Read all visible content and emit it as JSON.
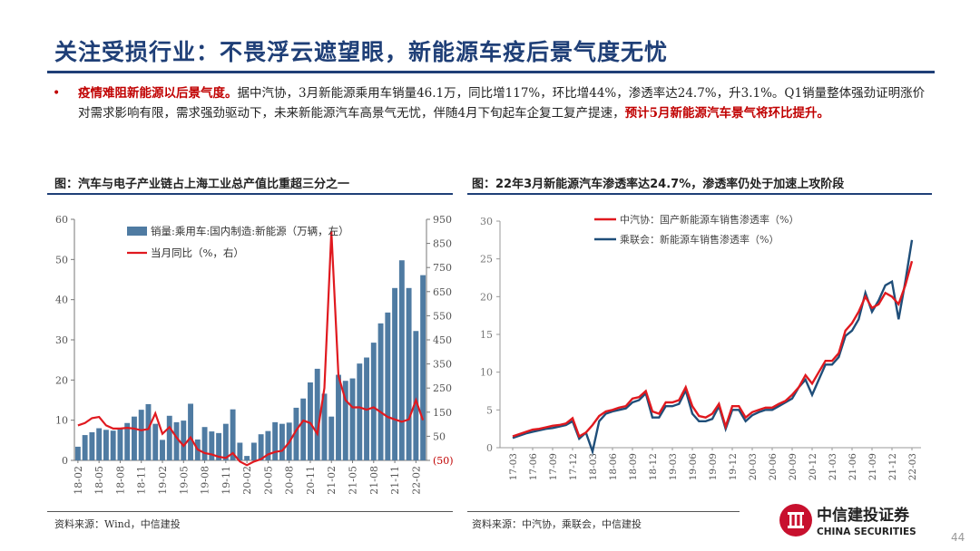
{
  "header": {
    "title": "关注受损行业：不畏浮云遮望眼，新能源车疫后景气度无忧"
  },
  "bullet": {
    "bold1": "疫情难阻新能源以后景气度。",
    "text1": "据中汽协，3月新能源乘用车销量46.1万，同比增117%，环比增44%，渗透率达24.7%，升3.1%。Q1销量整体强劲证明涨价对需求影响有限，需求强劲驱动下，未来新能源汽车高景气无忧，伴随4月下旬起车企复工复产提速，",
    "bold2": "预计5月新能源汽车景气将环比提升。"
  },
  "colors": {
    "accent": "#1f3f77",
    "bar": "#4f7ba2",
    "red_line": "#e0191f",
    "blue_line": "#1f4e79"
  },
  "chart_left": {
    "title": "图：汽车与电子产业链占上海工业总产值比重超三分之一",
    "source": "资料来源：Wind，中信建投"
  },
  "chart_right": {
    "title": "图：22年3月新能源汽车渗透率达24.7%，渗透率仍处于加速上攻阶段",
    "source": "资料来源：中汽协，乘联会，中信建投"
  },
  "logo": {
    "cn": "中信建投证券",
    "en": "CHINA SECURITIES"
  },
  "page_number": "44",
  "chart_data": [
    {
      "type": "bar+line",
      "categories": [
        "18-02",
        "18-03",
        "18-04",
        "18-05",
        "18-06",
        "18-07",
        "18-08",
        "18-09",
        "18-10",
        "18-11",
        "18-12",
        "19-01",
        "19-02",
        "19-03",
        "19-04",
        "19-05",
        "19-06",
        "19-07",
        "19-08",
        "19-09",
        "19-10",
        "19-11",
        "19-12",
        "20-01",
        "20-02",
        "20-03",
        "20-04",
        "20-05",
        "20-06",
        "20-07",
        "20-08",
        "20-09",
        "20-10",
        "20-11",
        "20-12",
        "21-01",
        "21-02",
        "21-03",
        "21-04",
        "21-05",
        "21-06",
        "21-07",
        "21-08",
        "21-09",
        "21-10",
        "21-11",
        "21-12",
        "22-01",
        "22-02",
        "22-03"
      ],
      "x_tick_labels": [
        "18-02",
        "18-05",
        "18-08",
        "18-11",
        "19-02",
        "19-05",
        "19-08",
        "19-11",
        "20-02",
        "20-05",
        "20-08",
        "20-11",
        "21-02",
        "21-05",
        "21-08",
        "21-11",
        "22-02"
      ],
      "series": [
        {
          "name": "销量:乘用车:国内制造:新能源（万辆，左）",
          "kind": "bar",
          "axis": "left",
          "values": [
            3.4,
            6.3,
            7.0,
            8.0,
            7.6,
            7.4,
            8.0,
            9.3,
            10.9,
            12.6,
            14.0,
            9.1,
            5.1,
            11.1,
            9.5,
            9.9,
            14.1,
            5.2,
            8.3,
            7.2,
            6.8,
            9.1,
            12.7,
            4.4,
            1.1,
            4.4,
            6.5,
            7.3,
            9.5,
            9.1,
            9.4,
            13.1,
            15.4,
            19.4,
            22.8,
            16.6,
            10.9,
            21.3,
            19.8,
            20.4,
            24.1,
            25.6,
            29.3,
            34.1,
            36.8,
            42.9,
            49.8,
            42.9,
            32.2,
            46.1
          ]
        },
        {
          "name": "当月同比（%，右）",
          "kind": "line",
          "axis": "right",
          "values": [
            95,
            105,
            125,
            130,
            95,
            82,
            82,
            85,
            82,
            75,
            80,
            145,
            60,
            88,
            45,
            10,
            45,
            -5,
            -20,
            -25,
            -35,
            -40,
            -20,
            -55,
            -70,
            -55,
            -45,
            -25,
            -15,
            -10,
            25,
            75,
            115,
            105,
            60,
            250,
            900,
            300,
            200,
            170,
            170,
            160,
            170,
            150,
            130,
            120,
            110,
            120,
            200,
            117
          ]
        }
      ],
      "y_left": {
        "ticks": [
          0,
          10,
          20,
          30,
          40,
          50,
          60
        ],
        "range": [
          0,
          60
        ]
      },
      "y_right": {
        "ticks": [
          "(50)",
          "50",
          "150",
          "250",
          "350",
          "450",
          "550",
          "650",
          "750",
          "850",
          "950"
        ],
        "range": [
          -50,
          950
        ]
      }
    },
    {
      "type": "line",
      "x": [
        "17-03",
        "17-04",
        "17-05",
        "17-06",
        "17-07",
        "17-08",
        "17-09",
        "17-10",
        "17-11",
        "17-12",
        "18-01",
        "18-02",
        "18-03",
        "18-04",
        "18-05",
        "18-06",
        "18-07",
        "18-08",
        "18-09",
        "18-10",
        "18-11",
        "18-12",
        "19-01",
        "19-02",
        "19-03",
        "19-04",
        "19-05",
        "19-06",
        "19-07",
        "19-08",
        "19-09",
        "19-10",
        "19-11",
        "19-12",
        "20-01",
        "20-02",
        "20-03",
        "20-04",
        "20-05",
        "20-06",
        "20-07",
        "20-08",
        "20-09",
        "20-10",
        "20-11",
        "20-12",
        "21-01",
        "21-02",
        "21-03",
        "21-04",
        "21-05",
        "21-06",
        "21-07",
        "21-08",
        "21-09",
        "21-10",
        "21-11",
        "21-12",
        "22-01",
        "22-02",
        "22-03"
      ],
      "x_tick_labels": [
        "17-03",
        "17-06",
        "17-09",
        "17-12",
        "18-03",
        "18-06",
        "18-09",
        "18-12",
        "19-03",
        "19-06",
        "19-09",
        "19-12",
        "20-03",
        "20-06",
        "20-09",
        "20-12",
        "21-03",
        "21-06",
        "21-09",
        "21-12",
        "22-03"
      ],
      "series": [
        {
          "name": "中汽协：国产新能源车销售渗透率（%）",
          "values": [
            1.5,
            1.8,
            2.1,
            2.4,
            2.5,
            2.7,
            2.9,
            3.0,
            3.2,
            3.9,
            1.5,
            2.0,
            3.0,
            4.2,
            4.8,
            5.0,
            5.3,
            5.5,
            6.5,
            6.7,
            7.5,
            4.8,
            4.5,
            6.0,
            6.0,
            6.3,
            8.0,
            5.5,
            4.2,
            4.0,
            4.5,
            5.8,
            2.8,
            5.5,
            5.5,
            4.0,
            4.7,
            5.0,
            5.3,
            5.3,
            5.8,
            6.2,
            7.0,
            8.0,
            9.6,
            8.5,
            10.0,
            11.5,
            11.5,
            12.5,
            15.5,
            16.5,
            18.0,
            20.0,
            18.5,
            19.0,
            20.5,
            20.0,
            19.0,
            21.5,
            24.7
          ]
        },
        {
          "name": "乘联会：新能源车销售渗透率（%）",
          "values": [
            1.3,
            1.6,
            1.9,
            2.1,
            2.3,
            2.5,
            2.6,
            2.8,
            3.0,
            3.5,
            1.2,
            2.0,
            -0.5,
            3.5,
            4.5,
            4.8,
            5.0,
            5.2,
            6.0,
            6.3,
            7.2,
            4.0,
            4.0,
            5.5,
            5.5,
            5.8,
            7.6,
            4.5,
            3.5,
            3.5,
            3.8,
            5.5,
            2.5,
            5.0,
            5.0,
            3.5,
            4.3,
            4.7,
            5.0,
            5.0,
            5.5,
            6.0,
            6.5,
            8.0,
            9.0,
            7.0,
            9.0,
            11.0,
            11.0,
            12.0,
            14.8,
            15.5,
            17.0,
            20.5,
            18.0,
            19.5,
            21.5,
            22.0,
            17.0,
            22.0,
            27.5
          ]
        }
      ],
      "y_ticks": [
        0,
        5,
        10,
        15,
        20,
        25,
        30
      ],
      "y_range": [
        0,
        30
      ],
      "legend": "top-left"
    }
  ]
}
